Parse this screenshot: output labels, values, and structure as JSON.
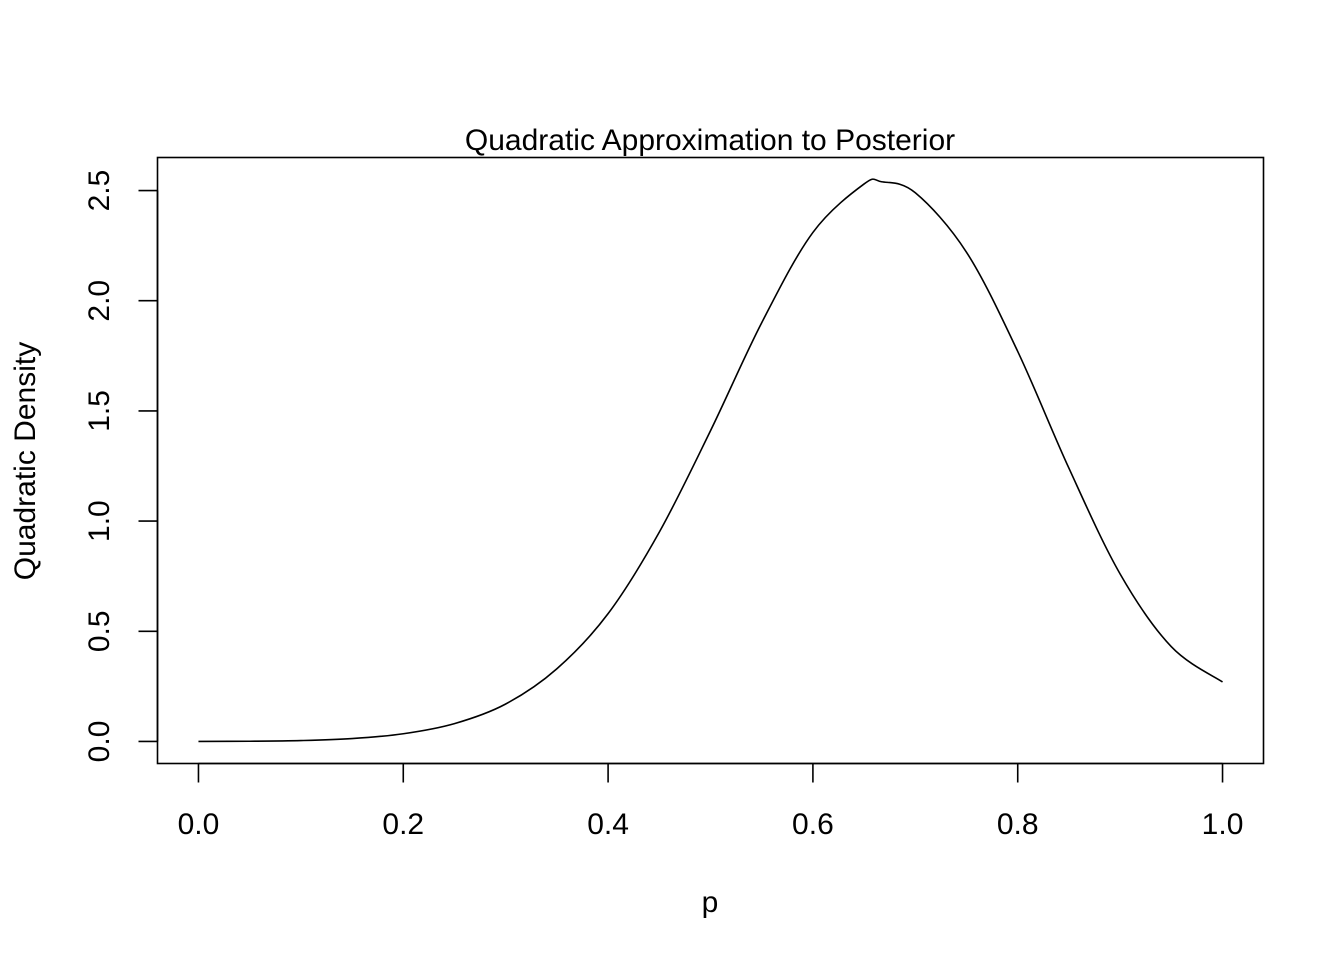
{
  "chart_data": {
    "type": "line",
    "title": "Quadratic Approximation to Posterior",
    "xlabel": "p",
    "ylabel": "Quadratic Density",
    "xlim": [
      -0.04,
      1.04
    ],
    "ylim": [
      -0.1,
      2.65
    ],
    "x_ticks": [
      0.0,
      0.2,
      0.4,
      0.6,
      0.8,
      1.0
    ],
    "x_tick_labels": [
      "0.0",
      "0.2",
      "0.4",
      "0.6",
      "0.8",
      "1.0"
    ],
    "y_ticks": [
      0.0,
      0.5,
      1.0,
      1.5,
      2.0,
      2.5
    ],
    "y_tick_labels": [
      "0.0",
      "0.5",
      "1.0",
      "1.5",
      "2.0",
      "2.5"
    ],
    "grid": false,
    "legend": "none",
    "series": [
      {
        "color": "#000000",
        "x": [
          0.0,
          0.05,
          0.1,
          0.15,
          0.2,
          0.25,
          0.3,
          0.35,
          0.4,
          0.45,
          0.5,
          0.55,
          0.6,
          0.65,
          0.667,
          0.7,
          0.75,
          0.8,
          0.85,
          0.9,
          0.95,
          1.0
        ],
        "y": [
          0.0,
          0.001,
          0.004,
          0.013,
          0.035,
          0.081,
          0.17,
          0.33,
          0.58,
          0.95,
          1.41,
          1.9,
          2.31,
          2.53,
          2.54,
          2.49,
          2.22,
          1.77,
          1.24,
          0.76,
          0.43,
          0.27
        ]
      }
    ]
  }
}
